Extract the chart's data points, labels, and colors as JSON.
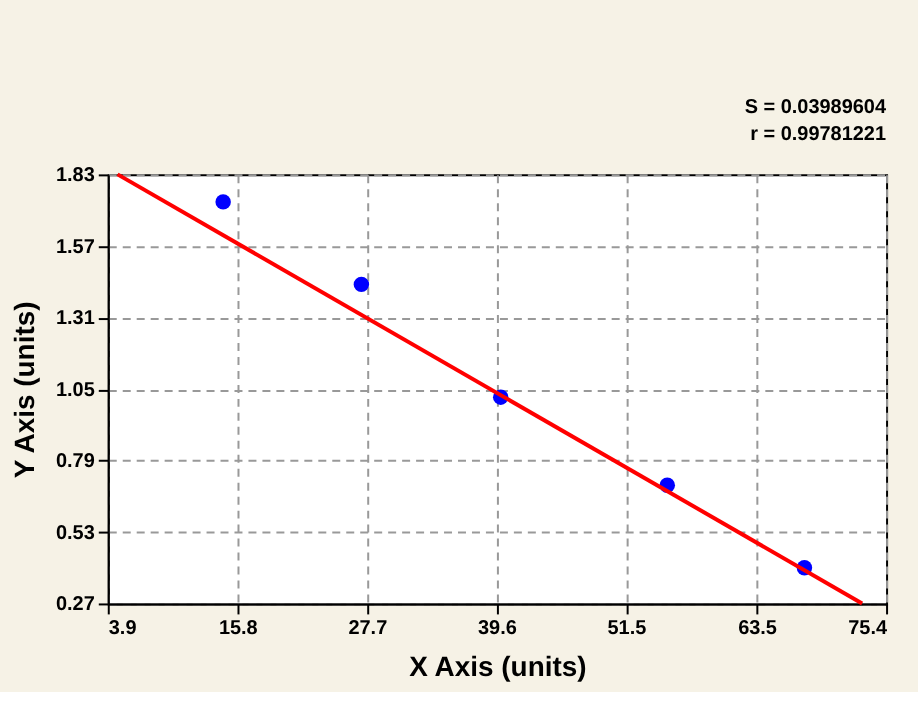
{
  "chart_data": {
    "type": "scatter",
    "xlabel": "X Axis (units)",
    "ylabel": "Y Axis (units)",
    "annotations": [
      "S = 0.03989604",
      "r = 0.99781221"
    ],
    "xlim": [
      3.9,
      75.4
    ],
    "xticks": [
      3.9,
      15.8,
      27.7,
      39.6,
      51.5,
      63.5,
      75.4
    ],
    "ylim": [
      0.27,
      1.83
    ],
    "yticks": [
      0.27,
      0.53,
      0.79,
      1.05,
      1.31,
      1.57,
      1.83
    ],
    "grid": true,
    "marker": "circle",
    "series": [
      {
        "color": "#0000ff",
        "x": [
          14.5,
          27.2,
          40.0,
          55.3,
          67.9
        ],
        "values": [
          1.73,
          1.43,
          1.02,
          0.7,
          0.4
        ]
      },
      {
        "type": "line",
        "color": "#ff0000",
        "line_style": "solid",
        "marker": "none",
        "x": [
          4.8,
          73.2
        ],
        "values": [
          1.83,
          0.27
        ]
      }
    ]
  }
}
